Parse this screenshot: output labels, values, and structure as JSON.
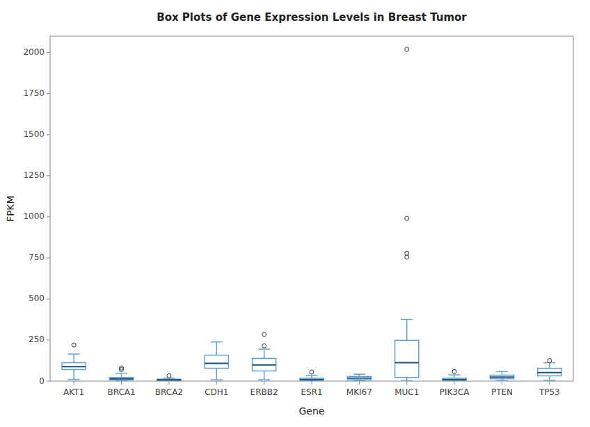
{
  "chart_data": {
    "type": "box",
    "title": "Box Plots of Gene Expression Levels in Breast Tumor",
    "x_label": "Gene",
    "y_label": "FPKM",
    "categories": [
      "AKT1",
      "BRCA1",
      "BRCA2",
      "CDH1",
      "ERBB2",
      "ESR1",
      "MKI67",
      "MUC1",
      "PIK3CA",
      "PTEN",
      "TP53"
    ],
    "boxes": [
      {
        "q1": 70,
        "median": 88,
        "q3": 112,
        "whislo": 10,
        "whishi": 165,
        "fliers": [
          220
        ]
      },
      {
        "q1": 8,
        "median": 14,
        "q3": 22,
        "whislo": 2,
        "whishi": 48,
        "fliers": [
          70,
          80
        ]
      },
      {
        "q1": 2,
        "median": 7,
        "q3": 12,
        "whislo": 0,
        "whishi": 18,
        "fliers": [
          32
        ]
      },
      {
        "q1": 78,
        "median": 108,
        "q3": 158,
        "whislo": 8,
        "whishi": 238,
        "fliers": []
      },
      {
        "q1": 62,
        "median": 98,
        "q3": 138,
        "whislo": 8,
        "whishi": 195,
        "fliers": [
          285,
          215
        ]
      },
      {
        "q1": 4,
        "median": 10,
        "q3": 18,
        "whislo": 0,
        "whishi": 35,
        "fliers": [
          55
        ]
      },
      {
        "q1": 8,
        "median": 18,
        "q3": 28,
        "whislo": 2,
        "whishi": 42,
        "fliers": []
      },
      {
        "q1": 22,
        "median": 112,
        "q3": 248,
        "whislo": 2,
        "whishi": 375,
        "fliers": [
          755,
          778,
          990,
          2020
        ]
      },
      {
        "q1": 4,
        "median": 10,
        "q3": 18,
        "whislo": 0,
        "whishi": 38,
        "fliers": [
          58
        ]
      },
      {
        "q1": 14,
        "median": 24,
        "q3": 36,
        "whislo": 2,
        "whishi": 58,
        "fliers": []
      },
      {
        "q1": 32,
        "median": 52,
        "q3": 78,
        "whislo": 5,
        "whishi": 112,
        "fliers": [
          125
        ]
      }
    ],
    "color": "#5BA3D9",
    "ylim": [
      0,
      2100
    ],
    "yticks": [
      0,
      250,
      500,
      750,
      1000,
      1250,
      1500,
      1750,
      2000
    ],
    "grid": false
  }
}
